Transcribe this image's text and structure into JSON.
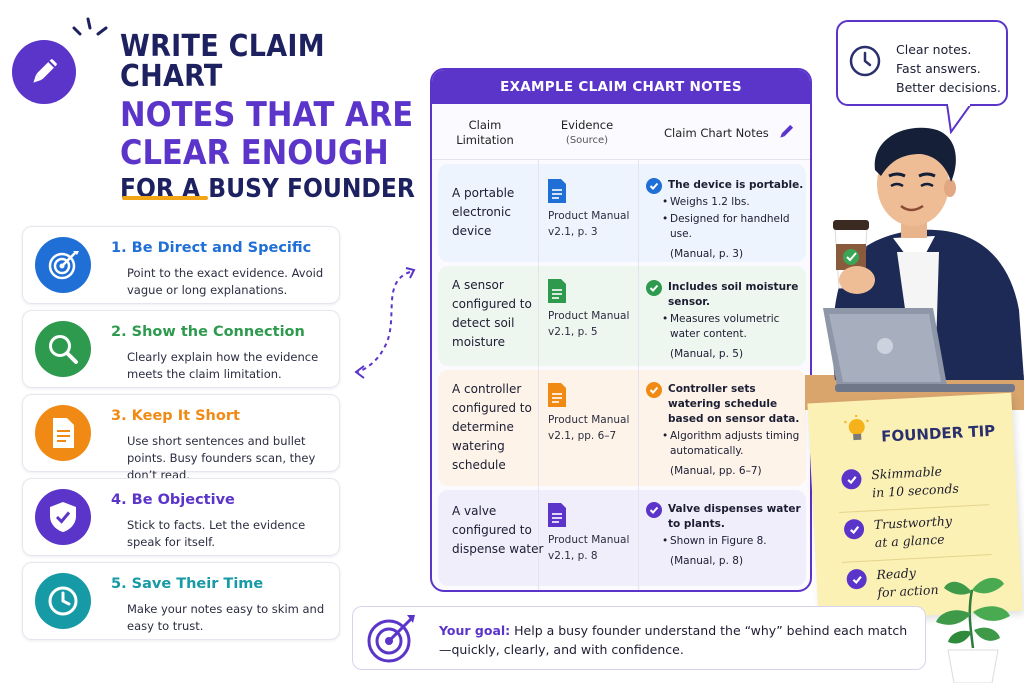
{
  "title": {
    "line1": "WRITE CLAIM CHART",
    "line2": "NOTES THAT ARE",
    "line3": "CLEAR ENOUGH",
    "line4": "FOR A BUSY FOUNDER",
    "icon": "pencil-icon"
  },
  "tips": [
    {
      "title": "1. Be Direct and Specific",
      "desc": "Point to the exact evidence. Avoid vague or long explanations.",
      "color": "#1f6fd6",
      "icon": "target-icon"
    },
    {
      "title": "2. Show the Connection",
      "desc": "Clearly explain how the evidence meets the claim limitation.",
      "color": "#2e9a4e",
      "icon": "magnifier-icon"
    },
    {
      "title": "3. Keep It Short",
      "desc": "Use short sentences and bullet points. Busy founders scan, they don’t read.",
      "color": "#f08a14",
      "icon": "document-icon"
    },
    {
      "title": "4. Be Objective",
      "desc": "Stick to facts. Let the evidence speak for itself.",
      "color": "#5b34c9",
      "icon": "shield-check-icon"
    },
    {
      "title": "5. Save Their Time",
      "desc": "Make your notes easy to skim and easy to trust.",
      "color": "#159aa6",
      "icon": "clock-icon"
    }
  ],
  "panel": {
    "header": "EXAMPLE CLAIM CHART NOTES",
    "col1": "Claim Limitation",
    "col2": "Evidence",
    "col2_sub": "(Source)",
    "col3": "Claim Chart Notes",
    "rows": [
      {
        "limitation": "A portable electronic device",
        "source": "Product Manual v2.1, p. 3",
        "note_main": "The device is portable.",
        "bullets": [
          "Weighs 1.2 lbs.",
          "Designed for handheld use."
        ],
        "cite": "(Manual, p. 3)",
        "accent": "#1f6fd6",
        "bg": "#eef4fd"
      },
      {
        "limitation": "A sensor configured to detect soil moisture",
        "source": "Product Manual v2.1, p. 5",
        "note_main": "Includes soil moisture sensor.",
        "bullets": [
          "Measures volumetric water content."
        ],
        "cite": "(Manual, p. 5)",
        "accent": "#2e9a4e",
        "bg": "#eef7ef"
      },
      {
        "limitation": "A controller configured to determine watering schedule",
        "source": "Product Manual v2.1, pp. 6–7",
        "note_main": "Controller sets watering schedule based on sensor data.",
        "bullets": [
          "Algorithm adjusts timing automatically."
        ],
        "cite": "(Manual, pp. 6–7)",
        "accent": "#f08a14",
        "bg": "#fdf3e8"
      },
      {
        "limitation": "A valve configured to dispense water",
        "source": "Product Manual v2.1, p. 8",
        "note_main": "Valve dispenses water to plants.",
        "bullets": [
          "Shown in Figure 8."
        ],
        "cite": "(Manual, p. 8)",
        "accent": "#5b34c9",
        "bg": "#f1eefb"
      }
    ]
  },
  "bubble": {
    "line1": "Clear notes.",
    "line2": "Fast answers.",
    "line3": "Better decisions."
  },
  "founder_tip": {
    "title": "FOUNDER TIP",
    "items": [
      {
        "l1": "Skimmable",
        "l2": "in 10 seconds"
      },
      {
        "l1": "Trustworthy",
        "l2": "at a glance"
      },
      {
        "l1": "Ready",
        "l2": "for action"
      }
    ]
  },
  "goal": {
    "lead": "Your goal:",
    "text": " Help a busy founder understand the “why” behind each match—quickly, clearly, and with confidence."
  },
  "colors": {
    "accent": "#5b34c9",
    "navy": "#1d2160",
    "gold": "#f2a516"
  }
}
